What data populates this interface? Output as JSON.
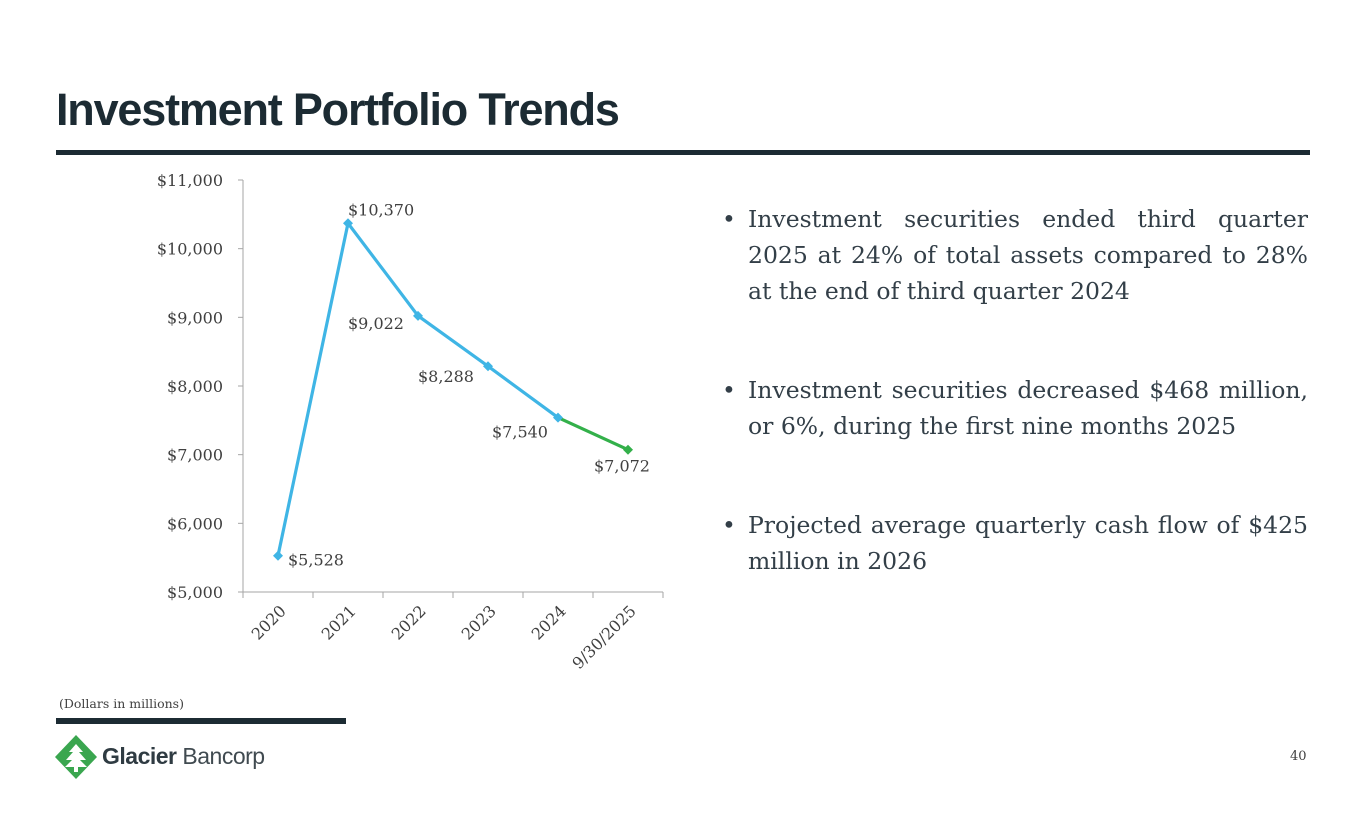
{
  "slide": {
    "title": "Investment Portfolio Trends",
    "page_number": "40",
    "note": "(Dollars in millions)"
  },
  "bullets": [
    "Investment securities ended third quarter 2025 at 24% of total assets compared to 28% at the end of third quarter 2024",
    "Investment securities decreased $468 million, or 6%, during the first nine months 2025",
    "Projected average quarterly cash flow of $425 million in 2026"
  ],
  "logo": {
    "brand_bold": "Glacier",
    "brand_light": " Bancorp"
  },
  "colors": {
    "title": "#1c2b33",
    "line_blue": "#3fb5e5",
    "line_green": "#33b04a",
    "logo_green": "#3aa64f"
  },
  "chart_data": {
    "type": "line",
    "title": "",
    "xlabel": "",
    "ylabel": "",
    "categories": [
      "2020",
      "2021",
      "2022",
      "2023",
      "2024",
      "9/30/2025"
    ],
    "values": [
      5528,
      10370,
      9022,
      8288,
      7540,
      7072
    ],
    "data_labels": [
      "$5,528",
      "$10,370",
      "$9,022",
      "$8,288",
      "$7,540",
      "$7,072"
    ],
    "segment_colors": [
      "blue",
      "blue",
      "blue",
      "blue",
      "green"
    ],
    "ylim": [
      5000,
      11000
    ],
    "yticks": [
      5000,
      6000,
      7000,
      8000,
      9000,
      10000,
      11000
    ],
    "ytick_labels": [
      "$5,000",
      "$6,000",
      "$7,000",
      "$8,000",
      "$9,000",
      "$10,000",
      "$11,000"
    ],
    "grid": false,
    "legend": "none"
  }
}
